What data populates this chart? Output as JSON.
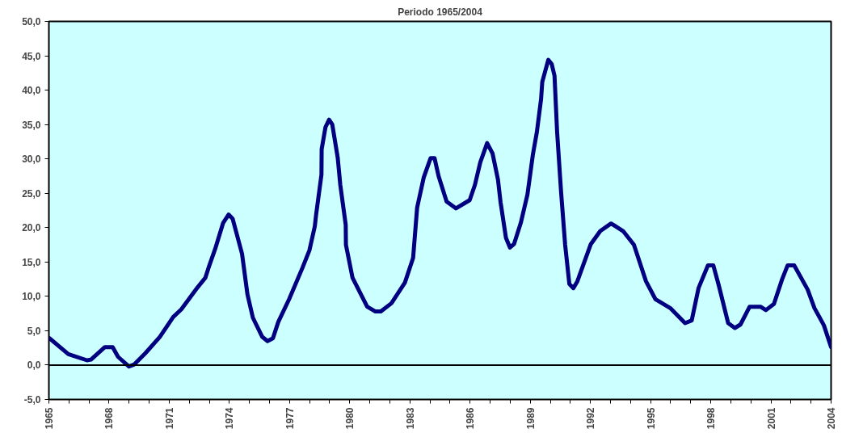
{
  "chart_data": {
    "type": "line",
    "title": "Periodo 1965/2004",
    "x": [
      1965.03,
      1965.97,
      1966.9,
      1967.1,
      1967.78,
      1968.18,
      1968.45,
      1968.99,
      1969.26,
      1969.8,
      1970.53,
      1971.2,
      1971.6,
      1972.41,
      1972.8,
      1973.0,
      1973.29,
      1973.69,
      1973.96,
      1974.16,
      1974.63,
      1974.9,
      1975.17,
      1975.64,
      1975.9,
      1976.17,
      1976.44,
      1976.98,
      1977.65,
      1977.99,
      1978.26,
      1978.32,
      1978.59,
      1978.6,
      1978.79,
      1978.97,
      1979.13,
      1979.4,
      1979.53,
      1979.8,
      1979.81,
      1980.14,
      1980.87,
      1981.28,
      1981.55,
      1982.08,
      1982.75,
      1983.16,
      1983.36,
      1983.69,
      1984.03,
      1984.23,
      1984.43,
      1984.83,
      1985.3,
      1985.98,
      1986.24,
      1986.51,
      1986.85,
      1987.12,
      1987.39,
      1987.52,
      1987.79,
      1987.99,
      1988.19,
      1988.53,
      1988.86,
      1989.13,
      1989.33,
      1989.54,
      1989.6,
      1989.9,
      1990.07,
      1990.21,
      1990.34,
      1990.54,
      1990.74,
      1990.95,
      1991.15,
      1991.35,
      1992.02,
      1992.49,
      1993.03,
      1993.63,
      1994.17,
      1994.77,
      1995.24,
      1995.98,
      1996.72,
      1997.05,
      1997.39,
      1997.86,
      1998.13,
      1998.4,
      1998.87,
      1999.2,
      1999.48,
      1999.94,
      2000.48,
      2000.75,
      2001.15,
      2001.56,
      2001.83,
      2002.16,
      2002.83,
      2003.17,
      2003.64,
      2004.0
    ],
    "series": [
      {
        "color": "#000080",
        "values": [
          3.9,
          1.6,
          0.7,
          0.8,
          2.6,
          2.6,
          1.2,
          -0.2,
          0.1,
          1.7,
          4.1,
          7.0,
          8.1,
          11.3,
          12.7,
          14.5,
          16.9,
          20.7,
          21.9,
          21.3,
          16.2,
          10.3,
          6.9,
          4.1,
          3.5,
          3.9,
          6.3,
          9.6,
          14.2,
          16.7,
          20.2,
          21.8,
          27.7,
          31.4,
          34.6,
          35.7,
          35.0,
          30.2,
          26.2,
          20.4,
          17.5,
          12.7,
          8.5,
          7.8,
          7.8,
          9.0,
          12.0,
          15.6,
          22.9,
          27.3,
          30.1,
          30.1,
          27.5,
          23.8,
          22.8,
          24.0,
          26.2,
          29.5,
          32.3,
          30.8,
          27.0,
          23.7,
          18.5,
          17.1,
          17.6,
          20.7,
          24.8,
          30.6,
          33.9,
          38.7,
          41.2,
          44.4,
          43.8,
          42.1,
          33.9,
          25.1,
          17.5,
          11.8,
          11.2,
          12.2,
          17.6,
          19.5,
          20.6,
          19.5,
          17.5,
          12.2,
          9.6,
          8.3,
          6.1,
          6.5,
          11.2,
          14.5,
          14.5,
          11.6,
          6.1,
          5.4,
          5.9,
          8.5,
          8.5,
          8.0,
          8.9,
          12.5,
          14.5,
          14.5,
          11.0,
          8.3,
          5.8,
          2.6
        ]
      }
    ],
    "xlim": [
      1965,
      2004
    ],
    "xticks": [
      1965,
      {
        "value": 1966,
        "label": null
      },
      {
        "value": 1967,
        "label": null
      },
      1968,
      {
        "value": 1969,
        "label": null
      },
      {
        "value": 1970,
        "label": null
      },
      1971,
      {
        "value": 1972,
        "label": null
      },
      {
        "value": 1973,
        "label": null
      },
      1974,
      {
        "value": 1975,
        "label": null
      },
      {
        "value": 1976,
        "label": null
      },
      1977,
      {
        "value": 1978,
        "label": null
      },
      {
        "value": 1979,
        "label": null
      },
      1980,
      {
        "value": 1981,
        "label": null
      },
      {
        "value": 1982,
        "label": null
      },
      1983,
      {
        "value": 1984,
        "label": null
      },
      {
        "value": 1985,
        "label": null
      },
      1986,
      {
        "value": 1987,
        "label": null
      },
      {
        "value": 1988,
        "label": null
      },
      1989,
      {
        "value": 1990,
        "label": null
      },
      {
        "value": 1991,
        "label": null
      },
      1992,
      {
        "value": 1993,
        "label": null
      },
      {
        "value": 1994,
        "label": null
      },
      1995,
      {
        "value": 1996,
        "label": null
      },
      {
        "value": 1997,
        "label": null
      },
      1998,
      {
        "value": 1999,
        "label": null
      },
      {
        "value": 2000,
        "label": null
      },
      2001,
      {
        "value": 2002,
        "label": null
      },
      {
        "value": 2003,
        "label": null
      },
      2004
    ],
    "ylim": [
      -5,
      50
    ],
    "yticks": [
      {
        "value": -5,
        "label": "-5,0"
      },
      {
        "value": 0,
        "label": "0,0"
      },
      {
        "value": 5,
        "label": "5,0"
      },
      {
        "value": 10,
        "label": "10,0"
      },
      {
        "value": 15,
        "label": "15,0"
      },
      {
        "value": 20,
        "label": "20,0"
      },
      {
        "value": 25,
        "label": "25,0"
      },
      {
        "value": 30,
        "label": "30,0"
      },
      {
        "value": 35,
        "label": "35,0"
      },
      {
        "value": 40,
        "label": "40,0"
      },
      {
        "value": 45,
        "label": "45,0"
      },
      {
        "value": 50,
        "label": "50,0"
      }
    ],
    "ref_lines": [
      {
        "axis": "y",
        "value": 0,
        "color": "#000000"
      }
    ],
    "grid": false,
    "marker": "none",
    "line_style": "solid"
  }
}
